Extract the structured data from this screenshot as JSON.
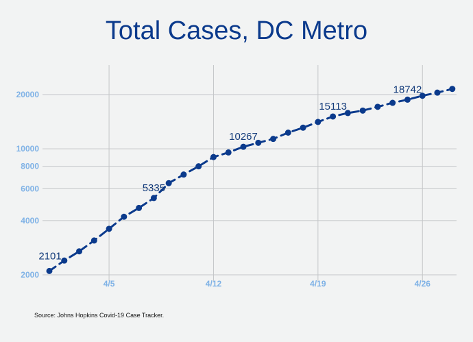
{
  "chart_data": {
    "type": "line",
    "title": "Total Cases, DC Metro",
    "xlabel": "",
    "ylabel": "",
    "yscale": "log",
    "ylim": [
      2000,
      26000
    ],
    "grid": true,
    "legend": "none",
    "x_ticks": [
      "4/5",
      "4/12",
      "4/19",
      "4/26"
    ],
    "y_ticks": [
      2000,
      4000,
      6000,
      8000,
      10000,
      20000
    ],
    "series": [
      {
        "color": "#0b3a8c",
        "line_style": "dashed",
        "x": [
          "4/1",
          "4/2",
          "4/3",
          "4/4",
          "4/5",
          "4/6",
          "4/7",
          "4/8",
          "4/9",
          "4/10",
          "4/11",
          "4/12",
          "4/13",
          "4/14",
          "4/15",
          "4/16",
          "4/17",
          "4/18",
          "4/19",
          "4/20",
          "4/21",
          "4/22",
          "4/23",
          "4/24",
          "4/25",
          "4/26",
          "4/27",
          "4/28"
        ],
        "values": [
          2101,
          2400,
          2700,
          3100,
          3600,
          4200,
          4700,
          5335,
          6450,
          7200,
          8000,
          9000,
          9550,
          10267,
          10800,
          11350,
          12300,
          13100,
          14100,
          15113,
          15800,
          16300,
          17100,
          18000,
          18742,
          19700,
          20500,
          21500
        ]
      }
    ],
    "data_labels": [
      {
        "x": "4/1",
        "text": "2101"
      },
      {
        "x": "4/8",
        "text": "5335"
      },
      {
        "x": "4/14",
        "text": "10267"
      },
      {
        "x": "4/20",
        "text": "15113"
      },
      {
        "x": "4/25",
        "text": "18742"
      }
    ],
    "source": "Source: Johns Hopkins Covid-19 Case Tracker."
  }
}
